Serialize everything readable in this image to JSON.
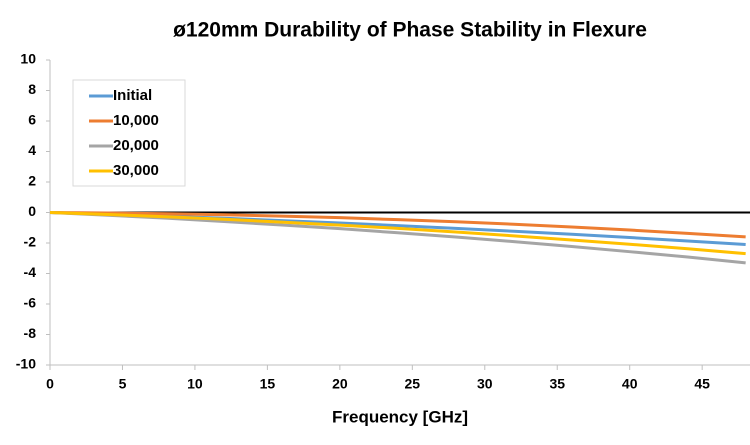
{
  "chart_data": {
    "type": "line",
    "title": "ø120mm Durability of Phase Stability in Flexure",
    "x_label": "Frequency [GHz]",
    "x": [
      0,
      4,
      8,
      12,
      16,
      20,
      24,
      28,
      32,
      36,
      40,
      44,
      48
    ],
    "series": [
      {
        "name": "Initial",
        "color": "#5b9bd5",
        "values": [
          0,
          -0.12,
          -0.24,
          -0.38,
          -0.53,
          -0.69,
          -0.86,
          -1.04,
          -1.23,
          -1.43,
          -1.64,
          -1.87,
          -2.1
        ]
      },
      {
        "name": "10,000",
        "color": "#ed7d31",
        "values": [
          0,
          -0.03,
          -0.08,
          -0.15,
          -0.24,
          -0.34,
          -0.47,
          -0.61,
          -0.77,
          -0.95,
          -1.15,
          -1.37,
          -1.6
        ]
      },
      {
        "name": "20,000",
        "color": "#a5a5a5",
        "values": [
          0,
          -0.18,
          -0.37,
          -0.59,
          -0.82,
          -1.06,
          -1.33,
          -1.61,
          -1.91,
          -2.23,
          -2.57,
          -2.92,
          -3.3
        ]
      },
      {
        "name": "30,000",
        "color": "#ffc000",
        "values": [
          0,
          -0.13,
          -0.28,
          -0.44,
          -0.63,
          -0.83,
          -1.04,
          -1.28,
          -1.53,
          -1.8,
          -2.08,
          -2.38,
          -2.7
        ]
      }
    ],
    "xlim": [
      0,
      48.3
    ],
    "ylim": [
      -10,
      10
    ],
    "xticks": [
      0,
      5,
      10,
      15,
      20,
      25,
      30,
      35,
      40,
      45
    ],
    "yticks": [
      -10,
      -8,
      -6,
      -4,
      -2,
      0,
      2,
      4,
      6,
      8,
      10
    ],
    "legend": "upper-left",
    "grid": false
  }
}
